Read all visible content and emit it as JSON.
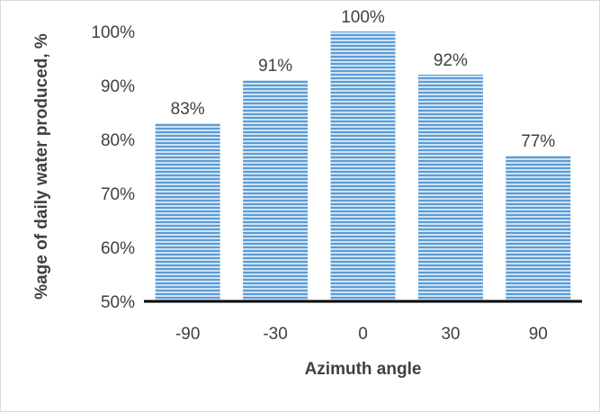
{
  "chart_data": {
    "type": "bar",
    "title": "",
    "xlabel": "Azimuth angle",
    "ylabel": "%age of daily water produced, %",
    "categories": [
      "-90",
      "-30",
      "0",
      "30",
      "90"
    ],
    "values": [
      83,
      91,
      100,
      92,
      77
    ],
    "data_labels": [
      "83%",
      "91%",
      "100%",
      "92%",
      "77%"
    ],
    "ylim": [
      50,
      100
    ],
    "yticks": [
      50,
      60,
      70,
      80,
      90,
      100
    ],
    "ytick_labels": [
      "50%",
      "60%",
      "70%",
      "80%",
      "90%",
      "100%"
    ],
    "grid": false,
    "legend": "none",
    "bar_color": "#9dc3e6",
    "bar_stripe_color": "#5b9bd5",
    "axis_color": "#000000"
  }
}
